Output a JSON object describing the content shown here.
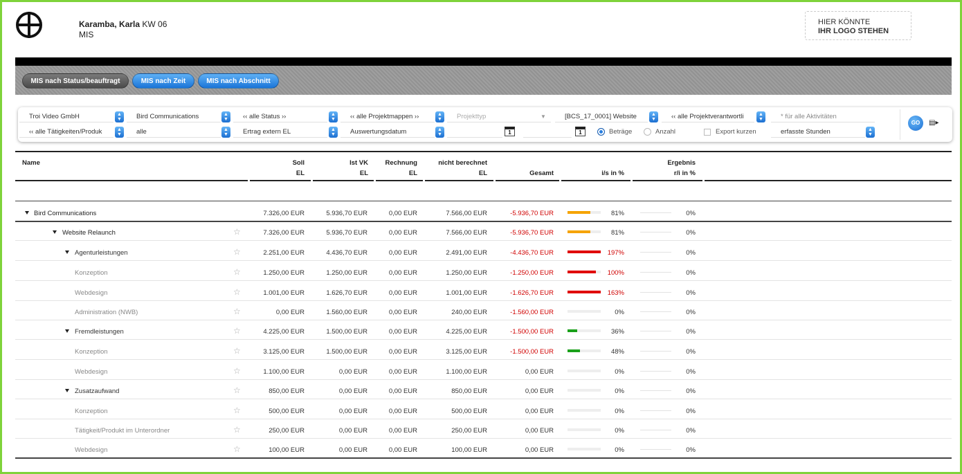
{
  "header": {
    "user_name": "Karamba, Karla",
    "week": "KW 06",
    "module": "MIS",
    "logo_placeholder_line1": "HIER KÖNNTE",
    "logo_placeholder_line2": "IHR LOGO STEHEN"
  },
  "tabs": [
    {
      "label": "MIS nach Status/beauftragt",
      "active": true
    },
    {
      "label": "MIS nach Zeit",
      "active": false
    },
    {
      "label": "MIS nach Abschnitt",
      "active": false
    }
  ],
  "filters": {
    "company": "Troi Video GmbH",
    "client": "Bird Communications",
    "status": "‹‹ alle Status ››",
    "portfolio": "‹‹ alle Projektmappen ››",
    "project_type_placeholder": "Projekttyp",
    "project": "[BCS_17_0001] Website",
    "project_lead": "‹‹ alle Projektverantwortli",
    "activities": "* für alle Aktivitäten",
    "activity_product": "‹‹ alle Tätigkeiten/Produk",
    "scope": "alle",
    "revenue_type": "Ertrag extern EL",
    "evaluation_date": "Auswertungsdatum",
    "calendar_day_1": "1",
    "calendar_day_2": "1",
    "radio_amounts": "Beträge",
    "radio_count": "Anzahl",
    "export_short": "Export kurzen",
    "hours": "erfasste Stunden",
    "go_label": "GO"
  },
  "table": {
    "headers": {
      "name": "Name",
      "soll": "Soll",
      "soll_unit": "EL",
      "ist_vk": "Ist VK",
      "ist_vk_unit": "EL",
      "rechnung": "Rechnung",
      "rechnung_unit": "EL",
      "nicht_berechnet": "nicht berechnet",
      "nicht_berechnet_unit": "EL",
      "gesamt": "Gesamt",
      "is_pct": "i/s in %",
      "ergebnis": "Ergebnis",
      "ergebnis_unit": "r/i in %"
    },
    "rows": [
      {
        "name": "Bird Communications",
        "level": 1,
        "expandable": true,
        "star": false,
        "soll": "7.326,00 EUR",
        "ist": "5.936,70 EUR",
        "rechnung": "0,00 EUR",
        "nicht": "7.566,00 EUR",
        "gesamt": "-5.936,70 EUR",
        "neg": true,
        "is_pct": "81%",
        "is_val": 81,
        "is_color": "#f5a300",
        "erg_pct": "0%"
      },
      {
        "name": "Website Relaunch",
        "level": 2,
        "expandable": true,
        "star": true,
        "soll": "7.326,00 EUR",
        "ist": "5.936,70 EUR",
        "rechnung": "0,00 EUR",
        "nicht": "7.566,00 EUR",
        "gesamt": "-5.936,70 EUR",
        "neg": true,
        "is_pct": "81%",
        "is_val": 81,
        "is_color": "#f5a300",
        "erg_pct": "0%"
      },
      {
        "name": "Agenturleistungen",
        "level": 3,
        "expandable": true,
        "star": true,
        "soll": "2.251,00 EUR",
        "ist": "4.436,70 EUR",
        "rechnung": "0,00 EUR",
        "nicht": "2.491,00 EUR",
        "gesamt": "-4.436,70 EUR",
        "neg": true,
        "is_pct": "197%",
        "is_val": 197,
        "is_color": "#e00000",
        "erg_pct": "0%"
      },
      {
        "name": "Konzeption",
        "level": 4,
        "expandable": false,
        "star": true,
        "soll": "1.250,00 EUR",
        "ist": "1.250,00 EUR",
        "rechnung": "0,00 EUR",
        "nicht": "1.250,00 EUR",
        "gesamt": "-1.250,00 EUR",
        "neg": true,
        "is_pct": "100%",
        "is_val": 100,
        "is_color": "#e00000",
        "erg_pct": "0%"
      },
      {
        "name": "Webdesign",
        "level": 4,
        "expandable": false,
        "star": true,
        "soll": "1.001,00 EUR",
        "ist": "1.626,70 EUR",
        "rechnung": "0,00 EUR",
        "nicht": "1.001,00 EUR",
        "gesamt": "-1.626,70 EUR",
        "neg": true,
        "is_pct": "163%",
        "is_val": 163,
        "is_color": "#e00000",
        "erg_pct": "0%"
      },
      {
        "name": "Administration (NWB)",
        "level": 4,
        "expandable": false,
        "star": true,
        "soll": "0,00 EUR",
        "ist": "1.560,00 EUR",
        "rechnung": "0,00 EUR",
        "nicht": "240,00 EUR",
        "gesamt": "-1.560,00 EUR",
        "neg": true,
        "is_pct": "0%",
        "is_val": 0,
        "is_color": "#e00000",
        "erg_pct": "0%"
      },
      {
        "name": "Fremdleistungen",
        "level": 3,
        "expandable": true,
        "star": true,
        "soll": "4.225,00 EUR",
        "ist": "1.500,00 EUR",
        "rechnung": "0,00 EUR",
        "nicht": "4.225,00 EUR",
        "gesamt": "-1.500,00 EUR",
        "neg": true,
        "is_pct": "36%",
        "is_val": 36,
        "is_color": "#1aa01a",
        "erg_pct": "0%"
      },
      {
        "name": "Konzeption",
        "level": 4,
        "expandable": false,
        "star": true,
        "soll": "3.125,00 EUR",
        "ist": "1.500,00 EUR",
        "rechnung": "0,00 EUR",
        "nicht": "3.125,00 EUR",
        "gesamt": "-1.500,00 EUR",
        "neg": true,
        "is_pct": "48%",
        "is_val": 48,
        "is_color": "#1aa01a",
        "erg_pct": "0%"
      },
      {
        "name": "Webdesign",
        "level": 4,
        "expandable": false,
        "star": true,
        "soll": "1.100,00 EUR",
        "ist": "0,00 EUR",
        "rechnung": "0,00 EUR",
        "nicht": "1.100,00 EUR",
        "gesamt": "0,00 EUR",
        "neg": false,
        "is_pct": "0%",
        "is_val": 0,
        "is_color": "#1aa01a",
        "erg_pct": "0%"
      },
      {
        "name": "Zusatzaufwand",
        "level": 3,
        "expandable": true,
        "star": true,
        "soll": "850,00 EUR",
        "ist": "0,00 EUR",
        "rechnung": "0,00 EUR",
        "nicht": "850,00 EUR",
        "gesamt": "0,00 EUR",
        "neg": false,
        "is_pct": "0%",
        "is_val": 0,
        "is_color": "#1aa01a",
        "erg_pct": "0%"
      },
      {
        "name": "Konzeption",
        "level": 4,
        "expandable": false,
        "star": true,
        "soll": "500,00 EUR",
        "ist": "0,00 EUR",
        "rechnung": "0,00 EUR",
        "nicht": "500,00 EUR",
        "gesamt": "0,00 EUR",
        "neg": false,
        "is_pct": "0%",
        "is_val": 0,
        "is_color": "#1aa01a",
        "erg_pct": "0%"
      },
      {
        "name": "Tätigkeit/Produkt im Unterordner",
        "level": 4,
        "expandable": false,
        "star": true,
        "soll": "250,00 EUR",
        "ist": "0,00 EUR",
        "rechnung": "0,00 EUR",
        "nicht": "250,00 EUR",
        "gesamt": "0,00 EUR",
        "neg": false,
        "is_pct": "0%",
        "is_val": 0,
        "is_color": "#1aa01a",
        "erg_pct": "0%"
      },
      {
        "name": "Webdesign",
        "level": 4,
        "expandable": false,
        "star": true,
        "soll": "100,00 EUR",
        "ist": "0,00 EUR",
        "rechnung": "0,00 EUR",
        "nicht": "100,00 EUR",
        "gesamt": "0,00 EUR",
        "neg": false,
        "is_pct": "0%",
        "is_val": 0,
        "is_color": "#1aa01a",
        "erg_pct": "0%"
      }
    ]
  }
}
